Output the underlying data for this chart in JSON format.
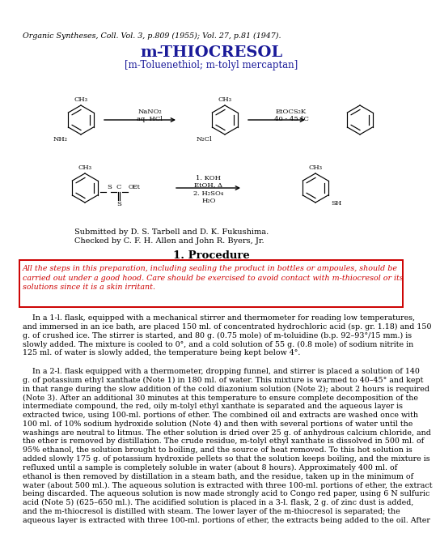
{
  "title_header": "Organic Syntheses, Coll. Vol. 3, p.809 (1955); Vol. 27, p.81 (1947).",
  "title_main": "m-THIOCRESOL",
  "title_sub": "[m-Toluenethiol; m-tolyl mercaptan]",
  "submitted": "Submitted by D. S. Tarbell and D. K. Fukushima.",
  "checked": "Checked by C. F. H. Allen and John R. Byers, Jr.",
  "section": "1. Procedure",
  "warning_text_lines": [
    "All the steps in this preparation, including sealing the product in bottles or ampoules, should be",
    "carried out under a good hood. Care should be exercised to avoid contact with m-thiocresol or its",
    "solutions since it is a skin irritant."
  ],
  "body1_lines": [
    "    In a 1-l. flask, equipped with a mechanical stirrer and thermometer for reading low temperatures,",
    "and immersed in an ice bath, are placed 150 ml. of concentrated hydrochloric acid (sp. gr. 1.18) and 150",
    "g. of crushed ice. The stirrer is started, and 80 g. (0.75 mole) of m-toluidine (b.p. 92–93°/15 mm.) is",
    "slowly added. The mixture is cooled to 0°, and a cold solution of 55 g. (0.8 mole) of sodium nitrite in",
    "125 ml. of water is slowly added, the temperature being kept below 4°."
  ],
  "body2_lines": [
    "    In a 2-l. flask equipped with a thermometer, dropping funnel, and stirrer is placed a solution of 140",
    "g. of potassium ethyl xanthate (Note 1) in 180 ml. of water. This mixture is warmed to 40–45° and kept",
    "in that range during the slow addition of the cold diazonium solution (Note 2); about 2 hours is required",
    "(Note 3). After an additional 30 minutes at this temperature to ensure complete decomposition of the",
    "intermediate compound, the red, oily m-tolyl ethyl xanthate is separated and the aqueous layer is",
    "extracted twice, using 100-ml. portions of ether. The combined oil and extracts are washed once with",
    "100 ml. of 10% sodium hydroxide solution (Note 4) and then with several portions of water until the",
    "washings are neutral to litmus. The ether solution is dried over 25 g. of anhydrous calcium chloride, and",
    "the ether is removed by distillation. The crude residue, m-tolyl ethyl xanthate is dissolved in 500 ml. of",
    "95% ethanol, the solution brought to boiling, and the source of heat removed. To this hot solution is",
    "added slowly 175 g. of potassium hydroxide pellets so that the solution keeps boiling, and the mixture is",
    "refluxed until a sample is completely soluble in water (about 8 hours). Approximately 400 ml. of",
    "ethanol is then removed by distillation in a steam bath, and the residue, taken up in the minimum of",
    "water (about 500 ml.). The aqueous solution is extracted with three 100-ml. portions of ether, the extract",
    "being discarded. The aqueous solution is now made strongly acid to Congo red paper, using 6 N sulfuric",
    "acid (Note 5) (625–650 ml.). The acidified solution is placed in a 3-l. flask, 2 g. of zinc dust is added,",
    "and the m-thiocresol is distilled with steam. The lower layer of the m-thiocresol is separated; the",
    "aqueous layer is extracted with three 100-ml. portions of ether, the extracts being added to the oil. After"
  ],
  "bg": "#ffffff",
  "black": "#000000",
  "blue": "#1a1a99",
  "red": "#cc0000",
  "title_blue": "#1a1a99",
  "warn_red": "#cc0000",
  "link_blue": "#2244aa"
}
